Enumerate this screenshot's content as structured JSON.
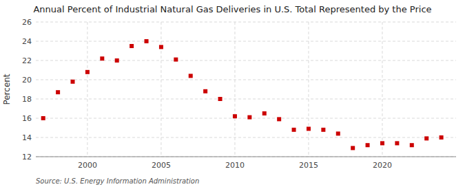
{
  "chart_data": {
    "type": "scatter",
    "title": "Annual Percent of Industrial Natural Gas Deliveries in U.S. Total Represented by the Price",
    "ylabel": "Percent",
    "source": "Source: U.S. Energy Information Administration",
    "x": [
      1997,
      1998,
      1999,
      2000,
      2001,
      2002,
      2003,
      2004,
      2005,
      2006,
      2007,
      2008,
      2009,
      2010,
      2011,
      2012,
      2013,
      2014,
      2015,
      2016,
      2017,
      2018,
      2019,
      2020,
      2021,
      2022,
      2023,
      2024
    ],
    "values": [
      16.0,
      18.7,
      19.8,
      20.8,
      22.2,
      22.0,
      23.5,
      24.0,
      23.4,
      22.1,
      20.4,
      18.8,
      18.0,
      16.2,
      16.1,
      16.5,
      15.9,
      14.8,
      14.9,
      14.8,
      14.4,
      12.9,
      13.2,
      13.4,
      13.4,
      13.2,
      13.9,
      14.0
    ],
    "color": "#cc0000",
    "marker": "square",
    "xlim": [
      1996.5,
      2025
    ],
    "xticks": [
      2000,
      2005,
      2010,
      2015,
      2020
    ],
    "ylim": [
      12,
      26
    ],
    "yticks": [
      12,
      14,
      16,
      18,
      20,
      22,
      24,
      26
    ],
    "grid": true
  }
}
